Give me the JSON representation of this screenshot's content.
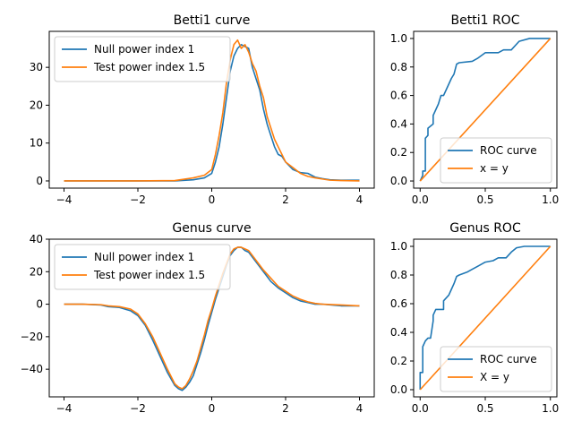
{
  "colors": {
    "blue": "#1f77b4",
    "orange": "#ff7f0e"
  },
  "chart_data": [
    {
      "type": "line",
      "title": "Betti1 curve",
      "xlim": [
        -4.4,
        4.4
      ],
      "ylim": [
        -1.9,
        39.5
      ],
      "xticks": [
        -4,
        -2,
        0,
        2,
        4
      ],
      "xtick_labels": [
        "−4",
        "−2",
        "0",
        "2",
        "4"
      ],
      "yticks": [
        0,
        10,
        20,
        30
      ],
      "ytick_labels": [
        "0",
        "10",
        "20",
        "30"
      ],
      "legend_position": "upper left",
      "grid": false,
      "series": [
        {
          "name": "Null power index 1",
          "color": "#1f77b4",
          "x": [
            -4,
            -3,
            -2,
            -1,
            -0.5,
            -0.2,
            0,
            0.1,
            0.2,
            0.3,
            0.4,
            0.5,
            0.6,
            0.7,
            0.8,
            0.9,
            1.0,
            1.1,
            1.2,
            1.3,
            1.4,
            1.5,
            1.6,
            1.7,
            1.8,
            1.9,
            2.0,
            2.2,
            2.4,
            2.6,
            2.8,
            3.0,
            3.2,
            3.5,
            4
          ],
          "y": [
            0,
            0,
            0,
            0,
            0.3,
            0.8,
            2,
            5,
            9,
            15,
            22,
            29,
            33,
            35,
            36,
            35.5,
            35,
            30,
            27,
            24,
            19,
            15,
            12,
            9,
            7,
            6.5,
            5,
            3,
            2.2,
            2,
            1,
            0.6,
            0.3,
            0.2,
            0.2
          ]
        },
        {
          "name": "Test power index 1.5",
          "color": "#ff7f0e",
          "x": [
            -4,
            -3,
            -2,
            -1,
            -0.5,
            -0.2,
            0,
            0.1,
            0.2,
            0.3,
            0.4,
            0.5,
            0.6,
            0.7,
            0.8,
            0.9,
            1.0,
            1.1,
            1.2,
            1.3,
            1.4,
            1.5,
            1.6,
            1.7,
            1.8,
            1.9,
            2.0,
            2.2,
            2.4,
            2.6,
            2.8,
            3.0,
            3.2,
            3.5,
            4
          ],
          "y": [
            0,
            0,
            0,
            0.1,
            0.8,
            1.5,
            3,
            7,
            12,
            18,
            26,
            32,
            36,
            37.2,
            35,
            36,
            34,
            31,
            29,
            25,
            22,
            17,
            14,
            11,
            9,
            7,
            5,
            3.5,
            2,
            1.2,
            0.8,
            0.5,
            0.2,
            0.1,
            0
          ]
        }
      ]
    },
    {
      "type": "line",
      "title": "Betti1 ROC",
      "xlim": [
        -0.05,
        1.05
      ],
      "ylim": [
        -0.05,
        1.05
      ],
      "xticks": [
        0,
        0.5,
        1
      ],
      "xtick_labels": [
        "0.0",
        "0.5",
        "1.0"
      ],
      "yticks": [
        0,
        0.2,
        0.4,
        0.6,
        0.8,
        1.0
      ],
      "ytick_labels": [
        "0.0",
        "0.2",
        "0.4",
        "0.6",
        "0.8",
        "1.0"
      ],
      "legend_position": "lower right",
      "grid": false,
      "series": [
        {
          "name": "ROC curve",
          "color": "#1f77b4",
          "x": [
            0,
            0.02,
            0.02,
            0.04,
            0.04,
            0.06,
            0.06,
            0.1,
            0.1,
            0.12,
            0.14,
            0.16,
            0.18,
            0.2,
            0.22,
            0.24,
            0.26,
            0.28,
            0.3,
            0.4,
            0.44,
            0.5,
            0.6,
            0.64,
            0.7,
            0.76,
            0.84,
            1.0
          ],
          "y": [
            0,
            0.04,
            0.07,
            0.07,
            0.3,
            0.32,
            0.37,
            0.4,
            0.46,
            0.5,
            0.54,
            0.6,
            0.6,
            0.64,
            0.68,
            0.72,
            0.75,
            0.82,
            0.83,
            0.84,
            0.86,
            0.9,
            0.9,
            0.92,
            0.92,
            0.98,
            1.0,
            1.0
          ]
        },
        {
          "name": "x = y",
          "color": "#ff7f0e",
          "x": [
            0,
            1
          ],
          "y": [
            0,
            1
          ]
        }
      ]
    },
    {
      "type": "line",
      "title": "Genus curve",
      "xlim": [
        -4.4,
        4.4
      ],
      "ylim": [
        -57,
        40
      ],
      "xticks": [
        -4,
        -2,
        0,
        2,
        4
      ],
      "xtick_labels": [
        "−4",
        "−2",
        "0",
        "2",
        "4"
      ],
      "yticks": [
        -40,
        -20,
        0,
        20,
        40
      ],
      "ytick_labels": [
        "−40",
        "−20",
        "0",
        "20",
        "40"
      ],
      "legend_position": "upper left",
      "grid": false,
      "series": [
        {
          "name": "Null power index 1",
          "color": "#1f77b4",
          "x": [
            -4,
            -3.5,
            -3,
            -2.8,
            -2.5,
            -2.2,
            -2,
            -1.8,
            -1.6,
            -1.4,
            -1.2,
            -1.0,
            -0.9,
            -0.8,
            -0.7,
            -0.6,
            -0.5,
            -0.4,
            -0.3,
            -0.2,
            -0.1,
            0,
            0.1,
            0.2,
            0.3,
            0.4,
            0.5,
            0.6,
            0.7,
            0.8,
            0.9,
            1.0,
            1.2,
            1.4,
            1.6,
            1.8,
            2.0,
            2.2,
            2.4,
            2.6,
            2.8,
            3.0,
            3.5,
            4
          ],
          "y": [
            0,
            0,
            -0.5,
            -1.5,
            -2,
            -4,
            -7,
            -13,
            -22,
            -32,
            -42,
            -50,
            -52,
            -53,
            -51,
            -48,
            -44,
            -37,
            -30,
            -22,
            -13,
            -5,
            3,
            10,
            17,
            24,
            30,
            33,
            35,
            35,
            33,
            32,
            26,
            20,
            14,
            10,
            7,
            4,
            2,
            1,
            0,
            0,
            -1,
            -1
          ]
        },
        {
          "name": "Test power index 1.5",
          "color": "#ff7f0e",
          "x": [
            -4,
            -3.5,
            -3,
            -2.8,
            -2.5,
            -2.2,
            -2,
            -1.8,
            -1.6,
            -1.4,
            -1.2,
            -1.0,
            -0.9,
            -0.8,
            -0.7,
            -0.6,
            -0.5,
            -0.4,
            -0.3,
            -0.2,
            -0.1,
            0,
            0.1,
            0.2,
            0.3,
            0.4,
            0.5,
            0.6,
            0.7,
            0.8,
            0.9,
            1.0,
            1.2,
            1.4,
            1.6,
            1.8,
            2.0,
            2.2,
            2.4,
            2.6,
            2.8,
            3.0,
            3.5,
            4
          ],
          "y": [
            0,
            0,
            -0.3,
            -1,
            -1.5,
            -3,
            -6,
            -12,
            -20,
            -30,
            -40,
            -49,
            -51,
            -52,
            -50,
            -46,
            -41,
            -35,
            -27,
            -19,
            -10,
            -3,
            5,
            12,
            19,
            25,
            31,
            34,
            35,
            35,
            34,
            33,
            27,
            21,
            16,
            11,
            8,
            5,
            3,
            1.5,
            0.5,
            0,
            -0.5,
            -1
          ]
        }
      ]
    },
    {
      "type": "line",
      "title": "Genus ROC",
      "xlim": [
        -0.05,
        1.05
      ],
      "ylim": [
        -0.05,
        1.05
      ],
      "xticks": [
        0,
        0.5,
        1
      ],
      "xtick_labels": [
        "0.0",
        "0.5",
        "1.0"
      ],
      "yticks": [
        0,
        0.2,
        0.4,
        0.6,
        0.8,
        1.0
      ],
      "ytick_labels": [
        "0.0",
        "0.2",
        "0.4",
        "0.6",
        "0.8",
        "1.0"
      ],
      "legend_position": "lower right",
      "grid": false,
      "series": [
        {
          "name": "ROC curve",
          "color": "#1f77b4",
          "x": [
            0,
            0,
            0.02,
            0.02,
            0.04,
            0.06,
            0.08,
            0.1,
            0.1,
            0.12,
            0.12,
            0.18,
            0.18,
            0.22,
            0.24,
            0.26,
            0.28,
            0.3,
            0.36,
            0.4,
            0.44,
            0.5,
            0.56,
            0.6,
            0.66,
            0.7,
            0.74,
            0.8,
            1.0
          ],
          "y": [
            0,
            0.12,
            0.12,
            0.3,
            0.34,
            0.36,
            0.36,
            0.48,
            0.52,
            0.56,
            0.56,
            0.56,
            0.62,
            0.66,
            0.7,
            0.74,
            0.79,
            0.8,
            0.82,
            0.84,
            0.86,
            0.89,
            0.9,
            0.92,
            0.92,
            0.96,
            0.99,
            1.0,
            1.0
          ]
        },
        {
          "name": "X = y",
          "color": "#ff7f0e",
          "x": [
            0,
            1
          ],
          "y": [
            0,
            1
          ]
        }
      ]
    }
  ]
}
